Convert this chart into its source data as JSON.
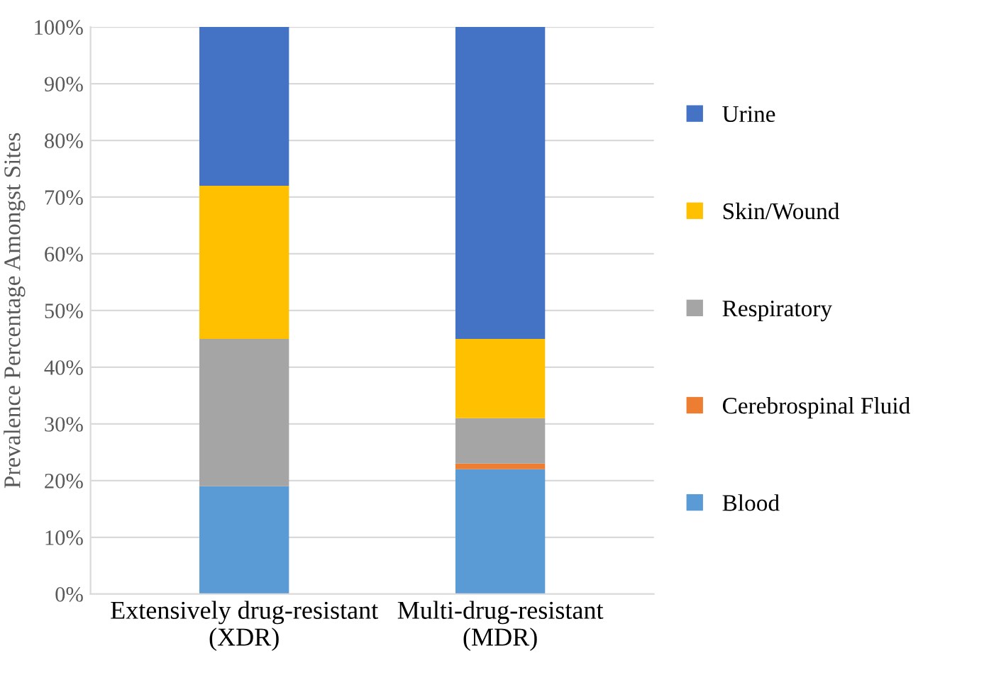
{
  "chart_data": {
    "type": "bar",
    "stacked": true,
    "ylabel": "Prevalence Percentage Amongst Sites",
    "categories": [
      "Extensively drug-resistant\n(XDR)",
      "Multi-drug-resistant\n(MDR)"
    ],
    "series": [
      {
        "name": "Blood",
        "color": "#5b9bd5",
        "values": [
          19,
          22
        ]
      },
      {
        "name": "Cerebrospinal Fluid",
        "color": "#ed7d31",
        "values": [
          0,
          1
        ]
      },
      {
        "name": "Respiratory",
        "color": "#a5a5a5",
        "values": [
          26,
          8
        ]
      },
      {
        "name": "Skin/Wound",
        "color": "#ffc000",
        "values": [
          27,
          14
        ]
      },
      {
        "name": "Urine",
        "color": "#4472c4",
        "values": [
          28,
          55
        ]
      }
    ],
    "ylim": [
      0,
      100
    ],
    "yticks": [
      {
        "value": 0,
        "label": "0%"
      },
      {
        "value": 10,
        "label": "10%"
      },
      {
        "value": 20,
        "label": "20%"
      },
      {
        "value": 30,
        "label": "30%"
      },
      {
        "value": 40,
        "label": "40%"
      },
      {
        "value": 50,
        "label": "50%"
      },
      {
        "value": 60,
        "label": "60%"
      },
      {
        "value": 70,
        "label": "70%"
      },
      {
        "value": 80,
        "label": "80%"
      },
      {
        "value": 90,
        "label": "90%"
      },
      {
        "value": 100,
        "label": "100%"
      }
    ],
    "grid": "y",
    "legend": "right"
  }
}
